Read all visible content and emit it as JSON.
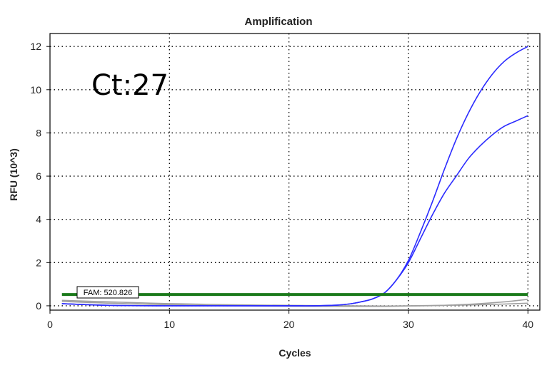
{
  "chart_data": {
    "type": "line",
    "title": "Amplification",
    "xlabel": "Cycles",
    "ylabel": "RFU (10^3)",
    "xlim": [
      0,
      41
    ],
    "ylim": [
      -0.2,
      12.6
    ],
    "xticks": [
      0,
      10,
      20,
      30,
      40
    ],
    "yticks": [
      0,
      2,
      4,
      6,
      8,
      10,
      12
    ],
    "grid": true,
    "annotation": "Ct:27",
    "threshold": {
      "label": "FAM: 520.826",
      "value": 0.520826,
      "color": "#1a7a1a"
    },
    "series": [
      {
        "color": "#2b2bff",
        "x": [
          1,
          5,
          10,
          15,
          20,
          22,
          24,
          25,
          26,
          27,
          28,
          29,
          30,
          31,
          32,
          33,
          34,
          35,
          36,
          37,
          38,
          39,
          40
        ],
        "values": [
          0.1,
          0.02,
          0.0,
          0.0,
          0.0,
          0.0,
          0.03,
          0.08,
          0.18,
          0.32,
          0.6,
          1.2,
          2.1,
          3.4,
          4.8,
          6.3,
          7.7,
          8.9,
          9.9,
          10.7,
          11.3,
          11.7,
          12.0
        ]
      },
      {
        "color": "#2b2bff",
        "x": [
          1,
          5,
          10,
          15,
          20,
          22,
          24,
          25,
          26,
          27,
          28,
          29,
          30,
          31,
          32,
          33,
          34,
          35,
          36,
          37,
          38,
          39,
          40
        ],
        "values": [
          0.1,
          0.02,
          0.0,
          0.0,
          0.0,
          0.0,
          0.03,
          0.08,
          0.18,
          0.32,
          0.6,
          1.2,
          2.0,
          3.1,
          4.2,
          5.2,
          6.0,
          6.8,
          7.4,
          7.9,
          8.3,
          8.55,
          8.8
        ]
      },
      {
        "color": "#a0a0a0",
        "x": [
          1,
          5,
          10,
          15,
          20,
          25,
          28,
          30,
          33,
          36,
          38,
          40
        ],
        "values": [
          0.2,
          0.12,
          0.05,
          0.0,
          -0.02,
          -0.03,
          -0.03,
          -0.01,
          0.02,
          0.1,
          0.18,
          0.3
        ]
      },
      {
        "color": "#a0a0a0",
        "x": [
          1,
          5,
          10,
          15,
          20,
          25,
          28,
          30,
          33,
          36,
          38,
          40
        ],
        "values": [
          0.25,
          0.18,
          0.1,
          0.05,
          0.02,
          0.0,
          -0.01,
          0.0,
          0.02,
          0.05,
          0.08,
          0.12
        ]
      }
    ]
  }
}
